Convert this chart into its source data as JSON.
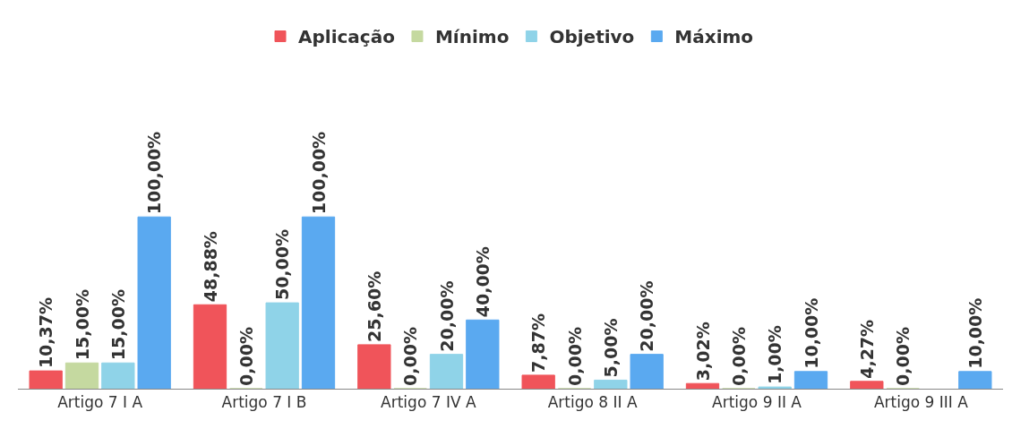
{
  "chart_data": {
    "type": "bar",
    "categories": [
      "Artigo 7 I A",
      "Artigo 7 I B",
      "Artigo 7 IV A",
      "Artigo 8 II A",
      "Artigo 9 II A",
      "Artigo 9 III A"
    ],
    "legend": "top",
    "series": [
      {
        "name": "Aplicação",
        "color": "#f0545a",
        "values": [
          10.37,
          48.88,
          25.6,
          7.87,
          3.02,
          4.27
        ],
        "value_labels": [
          "10,37%",
          "48,88%",
          "25,60%",
          "7,87%",
          "3,02%",
          "4,27%"
        ]
      },
      {
        "name": "Mínimo",
        "color": "#c5d9a0",
        "values": [
          15,
          0,
          0,
          0,
          0,
          0
        ],
        "value_labels": [
          "15,00%",
          "0,00%",
          "0,00%",
          "0,00%",
          "0,00%",
          "0,00%"
        ]
      },
      {
        "name": "Objetivo",
        "color": "#8fd3e8",
        "values": [
          15,
          50,
          20,
          5,
          1,
          null
        ],
        "value_labels": [
          "15,00%",
          "50,00%",
          "20,00%",
          "5,00%",
          "1,00%",
          null
        ]
      },
      {
        "name": "Máximo",
        "color": "#5aa9f0",
        "values": [
          100,
          100,
          40,
          20,
          10,
          10
        ],
        "value_labels": [
          "100,00%",
          "100,00%",
          "40,00%",
          "20,00%",
          "10,00%",
          "10,00%"
        ]
      }
    ]
  }
}
